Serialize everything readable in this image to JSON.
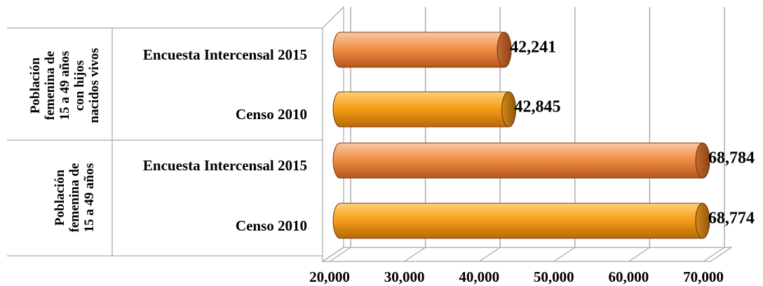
{
  "chart_data": {
    "type": "bar",
    "orientation": "horizontal",
    "style": "3d-cylinder",
    "groups": [
      {
        "label": "Población femenina de 15 a 49 años con hijos nacidos vivos",
        "label_lines": [
          "Población",
          "femenina de",
          "15 a 49 años",
          "con hijos",
          "nacidos vivos"
        ],
        "bars": [
          {
            "category": "Encuesta Intercensal 2015",
            "value": 42241,
            "value_label": "42,241",
            "color": "#f0914a"
          },
          {
            "category": "Censo 2010",
            "value": 42845,
            "value_label": "42,845",
            "color": "#f6a01a"
          }
        ]
      },
      {
        "label": "Población femenina de 15 a 49 años",
        "label_lines": [
          "Población",
          "femenina de",
          "15 a 49 años"
        ],
        "bars": [
          {
            "category": "Encuesta Intercensal 2015",
            "value": 68784,
            "value_label": "68,784",
            "color": "#f0914a"
          },
          {
            "category": "Censo 2010",
            "value": 68774,
            "value_label": "68,774",
            "color": "#f6a01a"
          }
        ]
      }
    ],
    "x_ticks": [
      20000,
      30000,
      40000,
      50000,
      60000,
      70000
    ],
    "x_tick_labels": [
      "20,000",
      "30,000",
      "40,000",
      "50,000",
      "60,000",
      "70,000"
    ],
    "xlim": [
      20000,
      70000
    ],
    "grid": true,
    "legend": false,
    "title": "",
    "xlabel": "",
    "ylabel": ""
  }
}
